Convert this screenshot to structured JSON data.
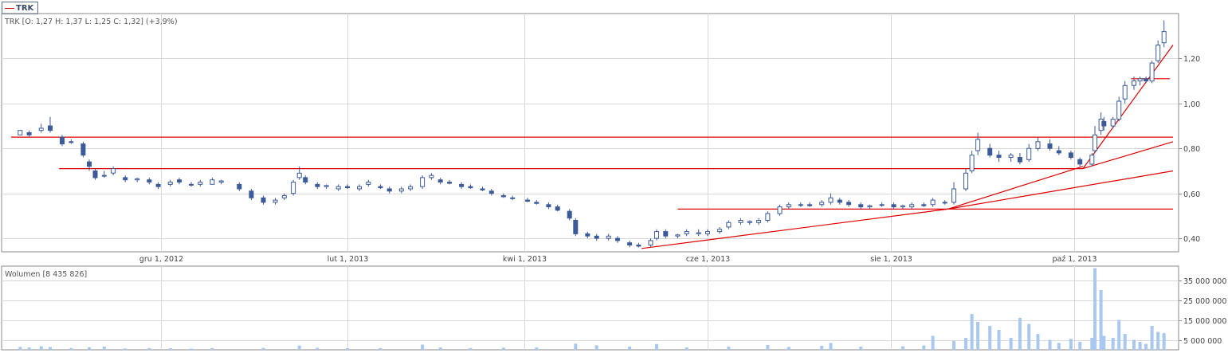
{
  "legend": {
    "symbol": "TRK"
  },
  "ohlc_label": "TRK [O: 1,27  H: 1,37  L: 1,25  C: 1,32] (+3,9%)",
  "volume_label": "Wolumen [8 435 826]",
  "colors": {
    "up": "#ffffff",
    "down": "#3d5a99",
    "candle_outline": "#3d5a99",
    "trendline": "#dd0000",
    "volume": "#a8c8f0",
    "grid": "#d8d8d8",
    "axis": "#8a8a8a"
  },
  "chart_data": [
    {
      "type": "candlestick",
      "title": "",
      "x_ticks": [
        "gru 1, 2012",
        "lut 1, 2013",
        "kwi 1, 2013",
        "cze 1, 2013",
        "sie 1, 2013",
        "paź 1, 2013"
      ],
      "y_ticks": [
        "0,40",
        "0,60",
        "0,80",
        "1,00",
        "1,20"
      ],
      "ylim": [
        0.34,
        1.4
      ],
      "x_range": [
        "2012-10-12",
        "2013-11-03"
      ],
      "candles": [
        [
          "2012-10-15",
          0.86,
          0.88,
          0.86,
          0.88
        ],
        [
          "2012-10-18",
          0.87,
          0.88,
          0.85,
          0.86
        ],
        [
          "2012-10-22",
          0.88,
          0.91,
          0.87,
          0.89
        ],
        [
          "2012-10-25",
          0.9,
          0.94,
          0.87,
          0.88
        ],
        [
          "2012-10-29",
          0.85,
          0.86,
          0.81,
          0.82
        ],
        [
          "2012-11-01",
          0.83,
          0.84,
          0.82,
          0.83
        ],
        [
          "2012-11-05",
          0.82,
          0.83,
          0.76,
          0.77
        ],
        [
          "2012-11-07",
          0.74,
          0.75,
          0.7,
          0.72
        ],
        [
          "2012-11-09",
          0.7,
          0.71,
          0.66,
          0.67
        ],
        [
          "2012-11-12",
          0.68,
          0.7,
          0.67,
          0.68
        ],
        [
          "2012-11-15",
          0.69,
          0.72,
          0.68,
          0.71
        ],
        [
          "2012-11-19",
          0.67,
          0.68,
          0.65,
          0.66
        ],
        [
          "2012-11-23",
          0.66,
          0.67,
          0.65,
          0.665
        ],
        [
          "2012-11-27",
          0.66,
          0.67,
          0.64,
          0.65
        ],
        [
          "2012-11-30",
          0.64,
          0.65,
          0.62,
          0.63
        ],
        [
          "2012-12-04",
          0.64,
          0.66,
          0.63,
          0.65
        ],
        [
          "2012-12-07",
          0.66,
          0.67,
          0.64,
          0.65
        ],
        [
          "2012-12-11",
          0.64,
          0.65,
          0.63,
          0.64
        ],
        [
          "2012-12-14",
          0.64,
          0.66,
          0.63,
          0.65
        ],
        [
          "2012-12-18",
          0.64,
          0.67,
          0.64,
          0.66
        ],
        [
          "2012-12-21",
          0.65,
          0.66,
          0.64,
          0.655
        ],
        [
          "2012-12-27",
          0.64,
          0.65,
          0.61,
          0.62
        ],
        [
          "2012-12-31",
          0.61,
          0.62,
          0.57,
          0.58
        ],
        [
          "2013-01-04",
          0.58,
          0.59,
          0.55,
          0.56
        ],
        [
          "2013-01-08",
          0.56,
          0.58,
          0.55,
          0.57
        ],
        [
          "2013-01-11",
          0.58,
          0.6,
          0.57,
          0.59
        ],
        [
          "2013-01-14",
          0.6,
          0.66,
          0.59,
          0.65
        ],
        [
          "2013-01-16",
          0.67,
          0.72,
          0.66,
          0.69
        ],
        [
          "2013-01-18",
          0.67,
          0.68,
          0.64,
          0.65
        ],
        [
          "2013-01-22",
          0.64,
          0.65,
          0.62,
          0.63
        ],
        [
          "2013-01-25",
          0.63,
          0.64,
          0.62,
          0.635
        ],
        [
          "2013-01-29",
          0.62,
          0.64,
          0.61,
          0.63
        ],
        [
          "2013-02-01",
          0.63,
          0.64,
          0.62,
          0.625
        ],
        [
          "2013-02-05",
          0.62,
          0.64,
          0.61,
          0.63
        ],
        [
          "2013-02-08",
          0.64,
          0.66,
          0.63,
          0.65
        ],
        [
          "2013-02-12",
          0.63,
          0.64,
          0.62,
          0.625
        ],
        [
          "2013-02-15",
          0.62,
          0.63,
          0.6,
          0.61
        ],
        [
          "2013-02-19",
          0.61,
          0.63,
          0.6,
          0.62
        ],
        [
          "2013-02-22",
          0.62,
          0.64,
          0.61,
          0.63
        ],
        [
          "2013-02-26",
          0.63,
          0.68,
          0.62,
          0.67
        ],
        [
          "2013-03-01",
          0.67,
          0.69,
          0.66,
          0.68
        ],
        [
          "2013-03-04",
          0.66,
          0.67,
          0.64,
          0.65
        ],
        [
          "2013-03-07",
          0.65,
          0.66,
          0.64,
          0.645
        ],
        [
          "2013-03-11",
          0.64,
          0.65,
          0.62,
          0.63
        ],
        [
          "2013-03-14",
          0.63,
          0.64,
          0.62,
          0.625
        ],
        [
          "2013-03-18",
          0.62,
          0.63,
          0.61,
          0.615
        ],
        [
          "2013-03-21",
          0.61,
          0.62,
          0.59,
          0.6
        ],
        [
          "2013-03-25",
          0.59,
          0.6,
          0.58,
          0.585
        ],
        [
          "2013-03-28",
          0.58,
          0.59,
          0.57,
          0.58
        ],
        [
          "2013-04-02",
          0.57,
          0.58,
          0.56,
          0.565
        ],
        [
          "2013-04-05",
          0.56,
          0.57,
          0.55,
          0.555
        ],
        [
          "2013-04-09",
          0.55,
          0.56,
          0.53,
          0.54
        ],
        [
          "2013-04-12",
          0.54,
          0.55,
          0.52,
          0.525
        ],
        [
          "2013-04-16",
          0.52,
          0.53,
          0.48,
          0.49
        ],
        [
          "2013-04-18",
          0.48,
          0.49,
          0.41,
          0.42
        ],
        [
          "2013-04-22",
          0.42,
          0.43,
          0.4,
          0.41
        ],
        [
          "2013-04-25",
          0.41,
          0.42,
          0.39,
          0.4
        ],
        [
          "2013-04-29",
          0.4,
          0.42,
          0.39,
          0.41
        ],
        [
          "2013-05-02",
          0.4,
          0.41,
          0.38,
          0.39
        ],
        [
          "2013-05-06",
          0.38,
          0.39,
          0.36,
          0.37
        ],
        [
          "2013-05-09",
          0.37,
          0.38,
          0.36,
          0.365
        ],
        [
          "2013-05-13",
          0.37,
          0.4,
          0.36,
          0.39
        ],
        [
          "2013-05-15",
          0.4,
          0.44,
          0.39,
          0.43
        ],
        [
          "2013-05-18",
          0.43,
          0.44,
          0.4,
          0.41
        ],
        [
          "2013-05-22",
          0.41,
          0.42,
          0.4,
          0.415
        ],
        [
          "2013-05-25",
          0.42,
          0.44,
          0.41,
          0.43
        ],
        [
          "2013-05-29",
          0.42,
          0.44,
          0.41,
          0.425
        ],
        [
          "2013-06-01",
          0.42,
          0.44,
          0.41,
          0.43
        ],
        [
          "2013-06-05",
          0.43,
          0.45,
          0.42,
          0.44
        ],
        [
          "2013-06-08",
          0.45,
          0.48,
          0.44,
          0.47
        ],
        [
          "2013-06-12",
          0.47,
          0.49,
          0.46,
          0.48
        ],
        [
          "2013-06-15",
          0.47,
          0.48,
          0.46,
          0.475
        ],
        [
          "2013-06-18",
          0.47,
          0.49,
          0.46,
          0.48
        ],
        [
          "2013-06-21",
          0.48,
          0.52,
          0.47,
          0.51
        ],
        [
          "2013-06-25",
          0.51,
          0.55,
          0.5,
          0.54
        ],
        [
          "2013-06-28",
          0.54,
          0.56,
          0.53,
          0.55
        ],
        [
          "2013-07-02",
          0.55,
          0.56,
          0.54,
          0.55
        ],
        [
          "2013-07-05",
          0.55,
          0.56,
          0.54,
          0.545
        ],
        [
          "2013-07-09",
          0.55,
          0.57,
          0.54,
          0.56
        ],
        [
          "2013-07-12",
          0.56,
          0.6,
          0.55,
          0.58
        ],
        [
          "2013-07-15",
          0.57,
          0.58,
          0.55,
          0.56
        ],
        [
          "2013-07-18",
          0.56,
          0.57,
          0.54,
          0.55
        ],
        [
          "2013-07-22",
          0.55,
          0.56,
          0.53,
          0.54
        ],
        [
          "2013-07-25",
          0.54,
          0.55,
          0.53,
          0.545
        ],
        [
          "2013-07-29",
          0.55,
          0.56,
          0.54,
          0.55
        ],
        [
          "2013-08-02",
          0.55,
          0.56,
          0.53,
          0.54
        ],
        [
          "2013-08-05",
          0.54,
          0.55,
          0.53,
          0.545
        ],
        [
          "2013-08-08",
          0.54,
          0.56,
          0.53,
          0.55
        ],
        [
          "2013-08-12",
          0.55,
          0.56,
          0.54,
          0.545
        ],
        [
          "2013-08-15",
          0.55,
          0.58,
          0.54,
          0.57
        ],
        [
          "2013-08-19",
          0.56,
          0.57,
          0.55,
          0.56
        ],
        [
          "2013-08-22",
          0.56,
          0.65,
          0.55,
          0.62
        ],
        [
          "2013-08-26",
          0.62,
          0.71,
          0.61,
          0.69
        ],
        [
          "2013-08-28",
          0.7,
          0.79,
          0.69,
          0.77
        ],
        [
          "2013-08-30",
          0.79,
          0.87,
          0.77,
          0.84
        ],
        [
          "2013-09-03",
          0.8,
          0.82,
          0.76,
          0.77
        ],
        [
          "2013-09-06",
          0.77,
          0.79,
          0.74,
          0.76
        ],
        [
          "2013-09-10",
          0.76,
          0.78,
          0.74,
          0.77
        ],
        [
          "2013-09-13",
          0.76,
          0.78,
          0.73,
          0.74
        ],
        [
          "2013-09-16",
          0.75,
          0.82,
          0.74,
          0.8
        ],
        [
          "2013-09-19",
          0.8,
          0.85,
          0.79,
          0.83
        ],
        [
          "2013-09-23",
          0.82,
          0.84,
          0.79,
          0.8
        ],
        [
          "2013-09-26",
          0.79,
          0.81,
          0.77,
          0.78
        ],
        [
          "2013-09-30",
          0.78,
          0.79,
          0.75,
          0.76
        ],
        [
          "2013-10-03",
          0.75,
          0.76,
          0.72,
          0.73
        ],
        [
          "2013-10-07",
          0.73,
          0.78,
          0.72,
          0.77
        ],
        [
          "2013-10-08",
          0.79,
          0.9,
          0.78,
          0.86
        ],
        [
          "2013-10-10",
          0.88,
          0.96,
          0.86,
          0.93
        ],
        [
          "2013-10-11",
          0.92,
          0.94,
          0.88,
          0.9
        ],
        [
          "2013-10-14",
          0.9,
          0.94,
          0.89,
          0.93
        ],
        [
          "2013-10-16",
          0.93,
          1.03,
          0.92,
          1.01
        ],
        [
          "2013-10-18",
          1.02,
          1.1,
          1.0,
          1.08
        ],
        [
          "2013-10-21",
          1.08,
          1.12,
          1.06,
          1.1
        ],
        [
          "2013-10-23",
          1.1,
          1.12,
          1.08,
          1.11
        ],
        [
          "2013-10-25",
          1.11,
          1.12,
          1.09,
          1.1
        ],
        [
          "2013-10-27",
          1.1,
          1.19,
          1.09,
          1.18
        ],
        [
          "2013-10-29",
          1.19,
          1.28,
          1.18,
          1.26
        ],
        [
          "2013-10-31",
          1.27,
          1.37,
          1.25,
          1.32
        ]
      ],
      "trendlines": [
        [
          [
            "2012-10-12",
            0.85
          ],
          [
            "2013-11-03",
            0.85
          ]
        ],
        [
          [
            "2012-10-28",
            0.71
          ],
          [
            "2013-10-04",
            0.71
          ]
        ],
        [
          [
            "2013-05-22",
            0.53
          ],
          [
            "2013-08-20",
            0.53
          ]
        ],
        [
          [
            "2013-08-20",
            0.53
          ],
          [
            "2013-11-03",
            0.53
          ]
        ],
        [
          [
            "2013-05-10",
            0.355
          ],
          [
            "2013-08-20",
            0.53
          ]
        ],
        [
          [
            "2013-08-20",
            0.53
          ],
          [
            "2013-11-03",
            0.7
          ]
        ],
        [
          [
            "2013-08-20",
            0.53
          ],
          [
            "2013-10-04",
            0.72
          ]
        ],
        [
          [
            "2013-10-04",
            0.71
          ],
          [
            "2013-11-03",
            0.83
          ]
        ],
        [
          [
            "2013-10-04",
            0.71
          ],
          [
            "2013-11-03",
            1.26
          ]
        ],
        [
          [
            "2013-10-20",
            1.11
          ],
          [
            "2013-11-02",
            1.11
          ]
        ]
      ]
    },
    {
      "type": "bar",
      "title": "",
      "y_ticks": [
        "5 000 000",
        "15 000 000",
        "25 000 000",
        "35 000 000"
      ],
      "ylim": [
        0,
        42000000
      ],
      "bars": [
        [
          "2012-10-15",
          1500000
        ],
        [
          "2012-10-18",
          1200000
        ],
        [
          "2012-10-22",
          1800000
        ],
        [
          "2012-10-25",
          1400000
        ],
        [
          "2012-11-01",
          900000
        ],
        [
          "2012-11-07",
          1300000
        ],
        [
          "2012-11-12",
          1600000
        ],
        [
          "2012-11-19",
          700000
        ],
        [
          "2012-11-27",
          900000
        ],
        [
          "2012-12-04",
          800000
        ],
        [
          "2012-12-11",
          600000
        ],
        [
          "2012-12-18",
          900000
        ],
        [
          "2013-01-04",
          1000000
        ],
        [
          "2013-01-16",
          2200000
        ],
        [
          "2013-01-22",
          1000000
        ],
        [
          "2013-02-01",
          800000
        ],
        [
          "2013-02-12",
          900000
        ],
        [
          "2013-02-26",
          2600000
        ],
        [
          "2013-03-04",
          1200000
        ],
        [
          "2013-03-14",
          900000
        ],
        [
          "2013-03-25",
          1100000
        ],
        [
          "2013-04-05",
          1200000
        ],
        [
          "2013-04-18",
          3100000
        ],
        [
          "2013-04-25",
          2200000
        ],
        [
          "2013-05-06",
          1600000
        ],
        [
          "2013-05-15",
          2900000
        ],
        [
          "2013-05-25",
          1200000
        ],
        [
          "2013-06-08",
          1600000
        ],
        [
          "2013-06-21",
          2400000
        ],
        [
          "2013-06-28",
          1500000
        ],
        [
          "2013-07-09",
          2000000
        ],
        [
          "2013-07-12",
          3500000
        ],
        [
          "2013-07-22",
          1600000
        ],
        [
          "2013-08-05",
          1800000
        ],
        [
          "2013-08-12",
          2200000
        ],
        [
          "2013-08-15",
          7000000
        ],
        [
          "2013-08-22",
          4500000
        ],
        [
          "2013-08-26",
          6000000
        ],
        [
          "2013-08-28",
          18000000
        ],
        [
          "2013-08-30",
          14000000
        ],
        [
          "2013-09-03",
          12000000
        ],
        [
          "2013-09-06",
          10000000
        ],
        [
          "2013-09-10",
          6000000
        ],
        [
          "2013-09-13",
          16000000
        ],
        [
          "2013-09-16",
          13000000
        ],
        [
          "2013-09-19",
          8000000
        ],
        [
          "2013-09-23",
          5000000
        ],
        [
          "2013-09-26",
          3500000
        ],
        [
          "2013-09-30",
          5500000
        ],
        [
          "2013-10-03",
          4000000
        ],
        [
          "2013-10-07",
          6000000
        ],
        [
          "2013-10-08",
          41000000
        ],
        [
          "2013-10-10",
          30000000
        ],
        [
          "2013-10-11",
          7000000
        ],
        [
          "2013-10-14",
          6000000
        ],
        [
          "2013-10-16",
          15000000
        ],
        [
          "2013-10-18",
          8000000
        ],
        [
          "2013-10-21",
          5000000
        ],
        [
          "2013-10-23",
          4000000
        ],
        [
          "2013-10-25",
          3000000
        ],
        [
          "2013-10-27",
          12000000
        ],
        [
          "2013-10-29",
          9000000
        ],
        [
          "2013-10-31",
          8400000
        ]
      ]
    }
  ]
}
